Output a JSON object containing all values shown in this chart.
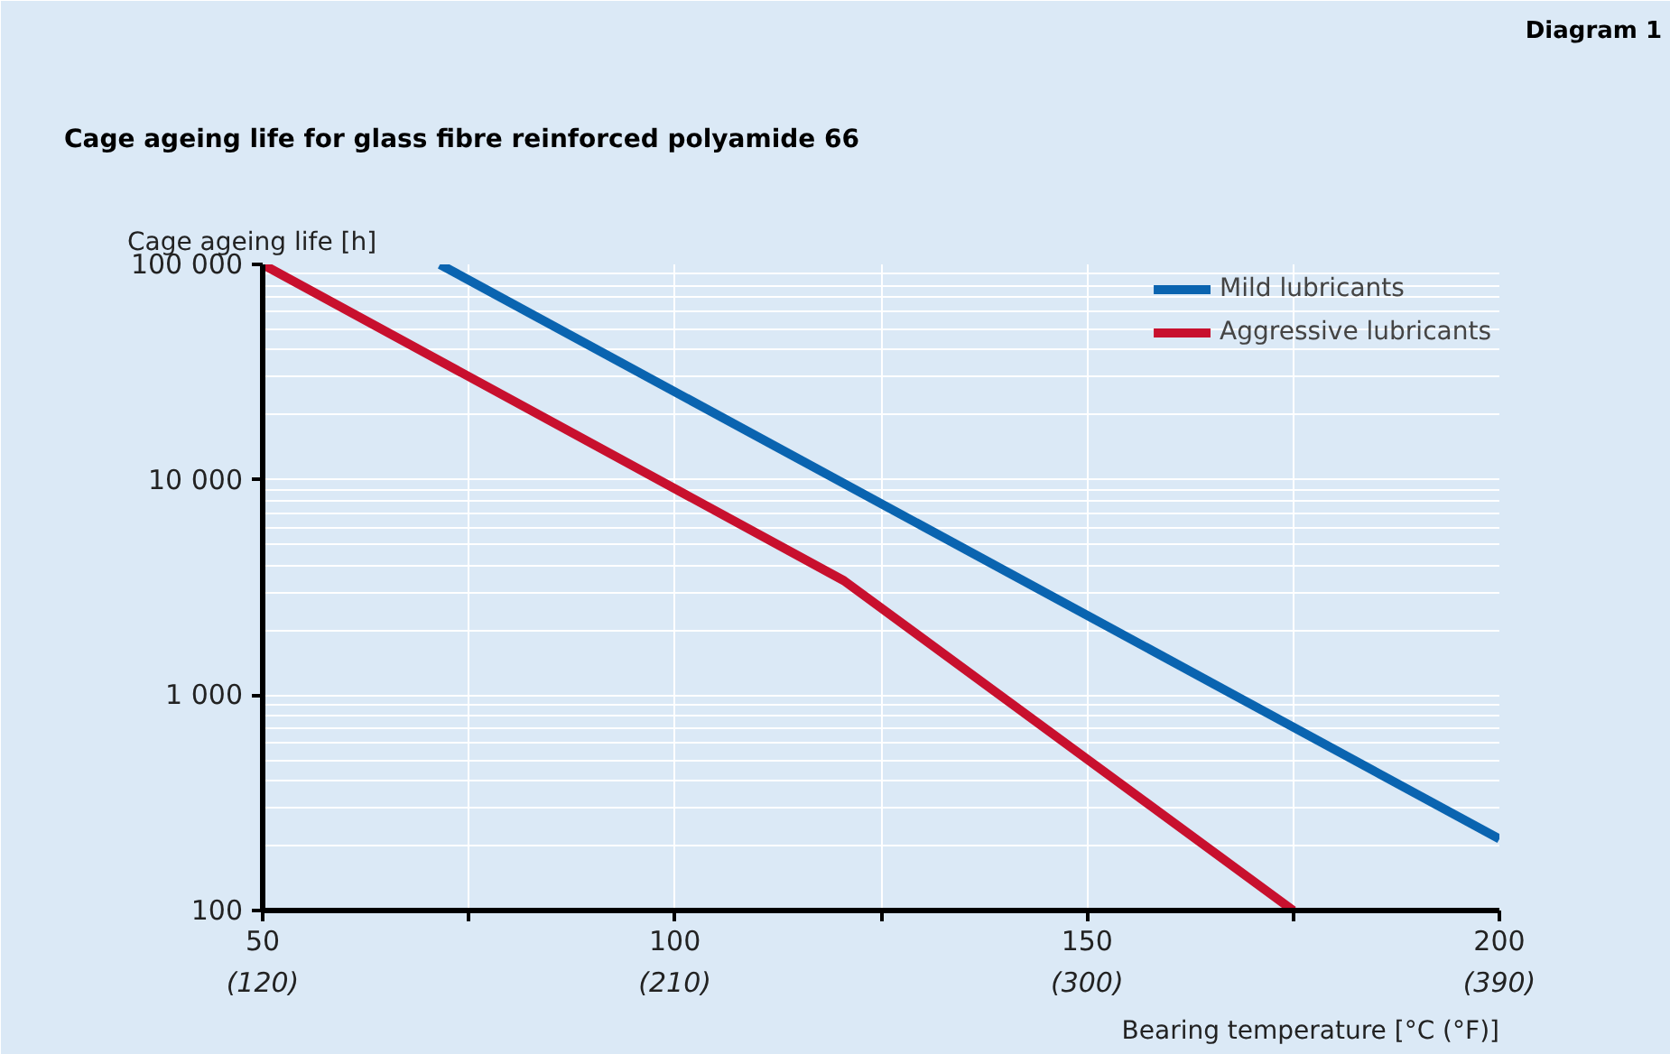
{
  "chart_data": {
    "type": "line",
    "title": "Cage ageing life for glass fibre reinforced polyamide 66",
    "xlabel": "Bearing temperature [°C (°F)]",
    "ylabel": "Cage ageing life [h]",
    "annotations": [
      "Diagram 1"
    ],
    "series": [
      {
        "name": "Mild lubricants",
        "color": "#0a64b0",
        "x": [
          71.5,
          200
        ],
        "values": [
          100000,
          215
        ]
      },
      {
        "name": "Aggressive lubricants",
        "color": "#c8102e",
        "x": [
          50,
          120.5,
          175
        ],
        "values": [
          100000,
          3400,
          100
        ]
      }
    ],
    "xlim": [
      50,
      200
    ],
    "xticks": [
      50,
      {
        "value": 75,
        "label": null
      },
      100,
      {
        "value": 125,
        "label": null
      },
      150,
      {
        "value": 175,
        "label": null
      },
      200
    ],
    "x2lim": [
      120,
      390
    ],
    "x2ticks": [
      {
        "value": 120,
        "label": "(120)"
      },
      {
        "value": 210,
        "label": "(210)"
      },
      {
        "value": 300,
        "label": "(300)"
      },
      {
        "value": 390,
        "label": "(390)"
      }
    ],
    "ylim": [
      100,
      100000
    ],
    "yticks": [
      {
        "value": 100,
        "label": "100"
      },
      {
        "value": 1000,
        "label": "1 000"
      },
      {
        "value": 10000,
        "label": "10 000"
      },
      {
        "value": 100000,
        "label": "100 000"
      }
    ],
    "log": "y",
    "grid": true,
    "legend": "top right",
    "marker": "none",
    "line_style": "solid"
  }
}
